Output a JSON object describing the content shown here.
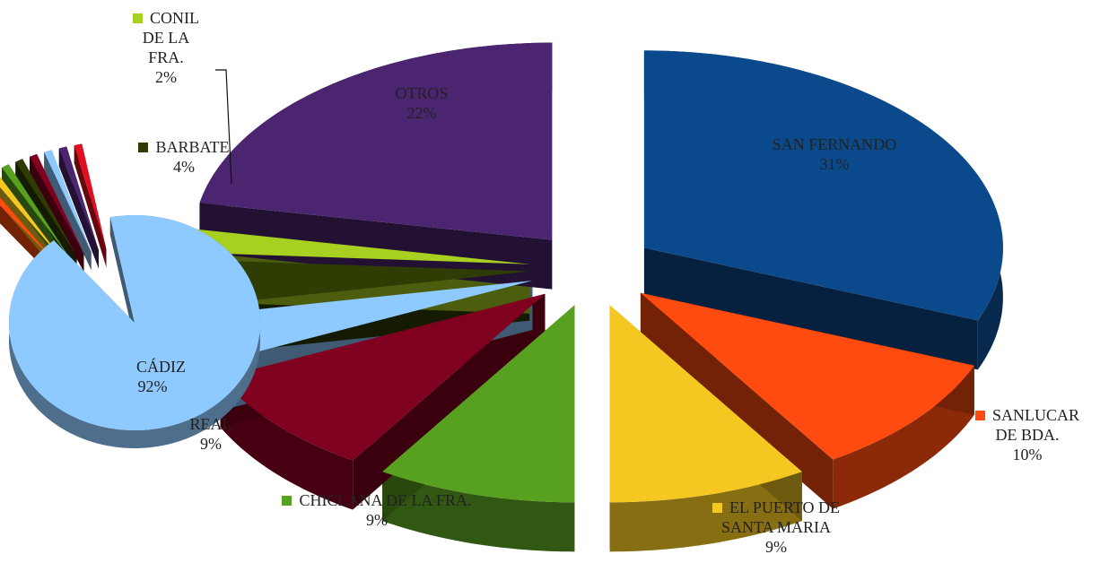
{
  "chart_data": [
    {
      "type": "pie",
      "categories": [
        "SAN FERNANDO",
        "SANLUCAR DE BDA.",
        "EL PUERTO DE SANTA MARIA",
        "CHICLANA DE LA FRA.",
        "REAL",
        null,
        "BARBATE",
        "CONIL DE LA FRA.",
        "OTROS"
      ],
      "values": [
        31,
        10,
        9,
        9,
        9,
        4,
        4,
        2,
        22
      ],
      "value_labels": [
        "31%",
        "10%",
        "9%",
        "9%",
        "9%",
        null,
        "4%",
        "2%",
        "22%"
      ],
      "colors": [
        "#0a4a8c",
        "#ff4a10",
        "#f5c821",
        "#58a020",
        "#800020",
        "#8ec9ff",
        "#2f3d05",
        "#a8d020",
        "#4b2570"
      ]
    },
    {
      "type": "pie",
      "categories": [
        null,
        null,
        null,
        null,
        null,
        null,
        null,
        null,
        "CÁDIZ"
      ],
      "values": [
        1,
        1,
        1,
        1,
        1,
        1,
        1,
        1,
        92
      ],
      "value_labels": [
        null,
        null,
        null,
        null,
        null,
        null,
        null,
        null,
        "92%"
      ],
      "colors": [
        "#ff4a10",
        "#f5c821",
        "#58a020",
        "#2f3d05",
        "#800020",
        "#8ec9ff",
        "#4b2570",
        "#e01020",
        "#8ec9ff"
      ]
    }
  ]
}
